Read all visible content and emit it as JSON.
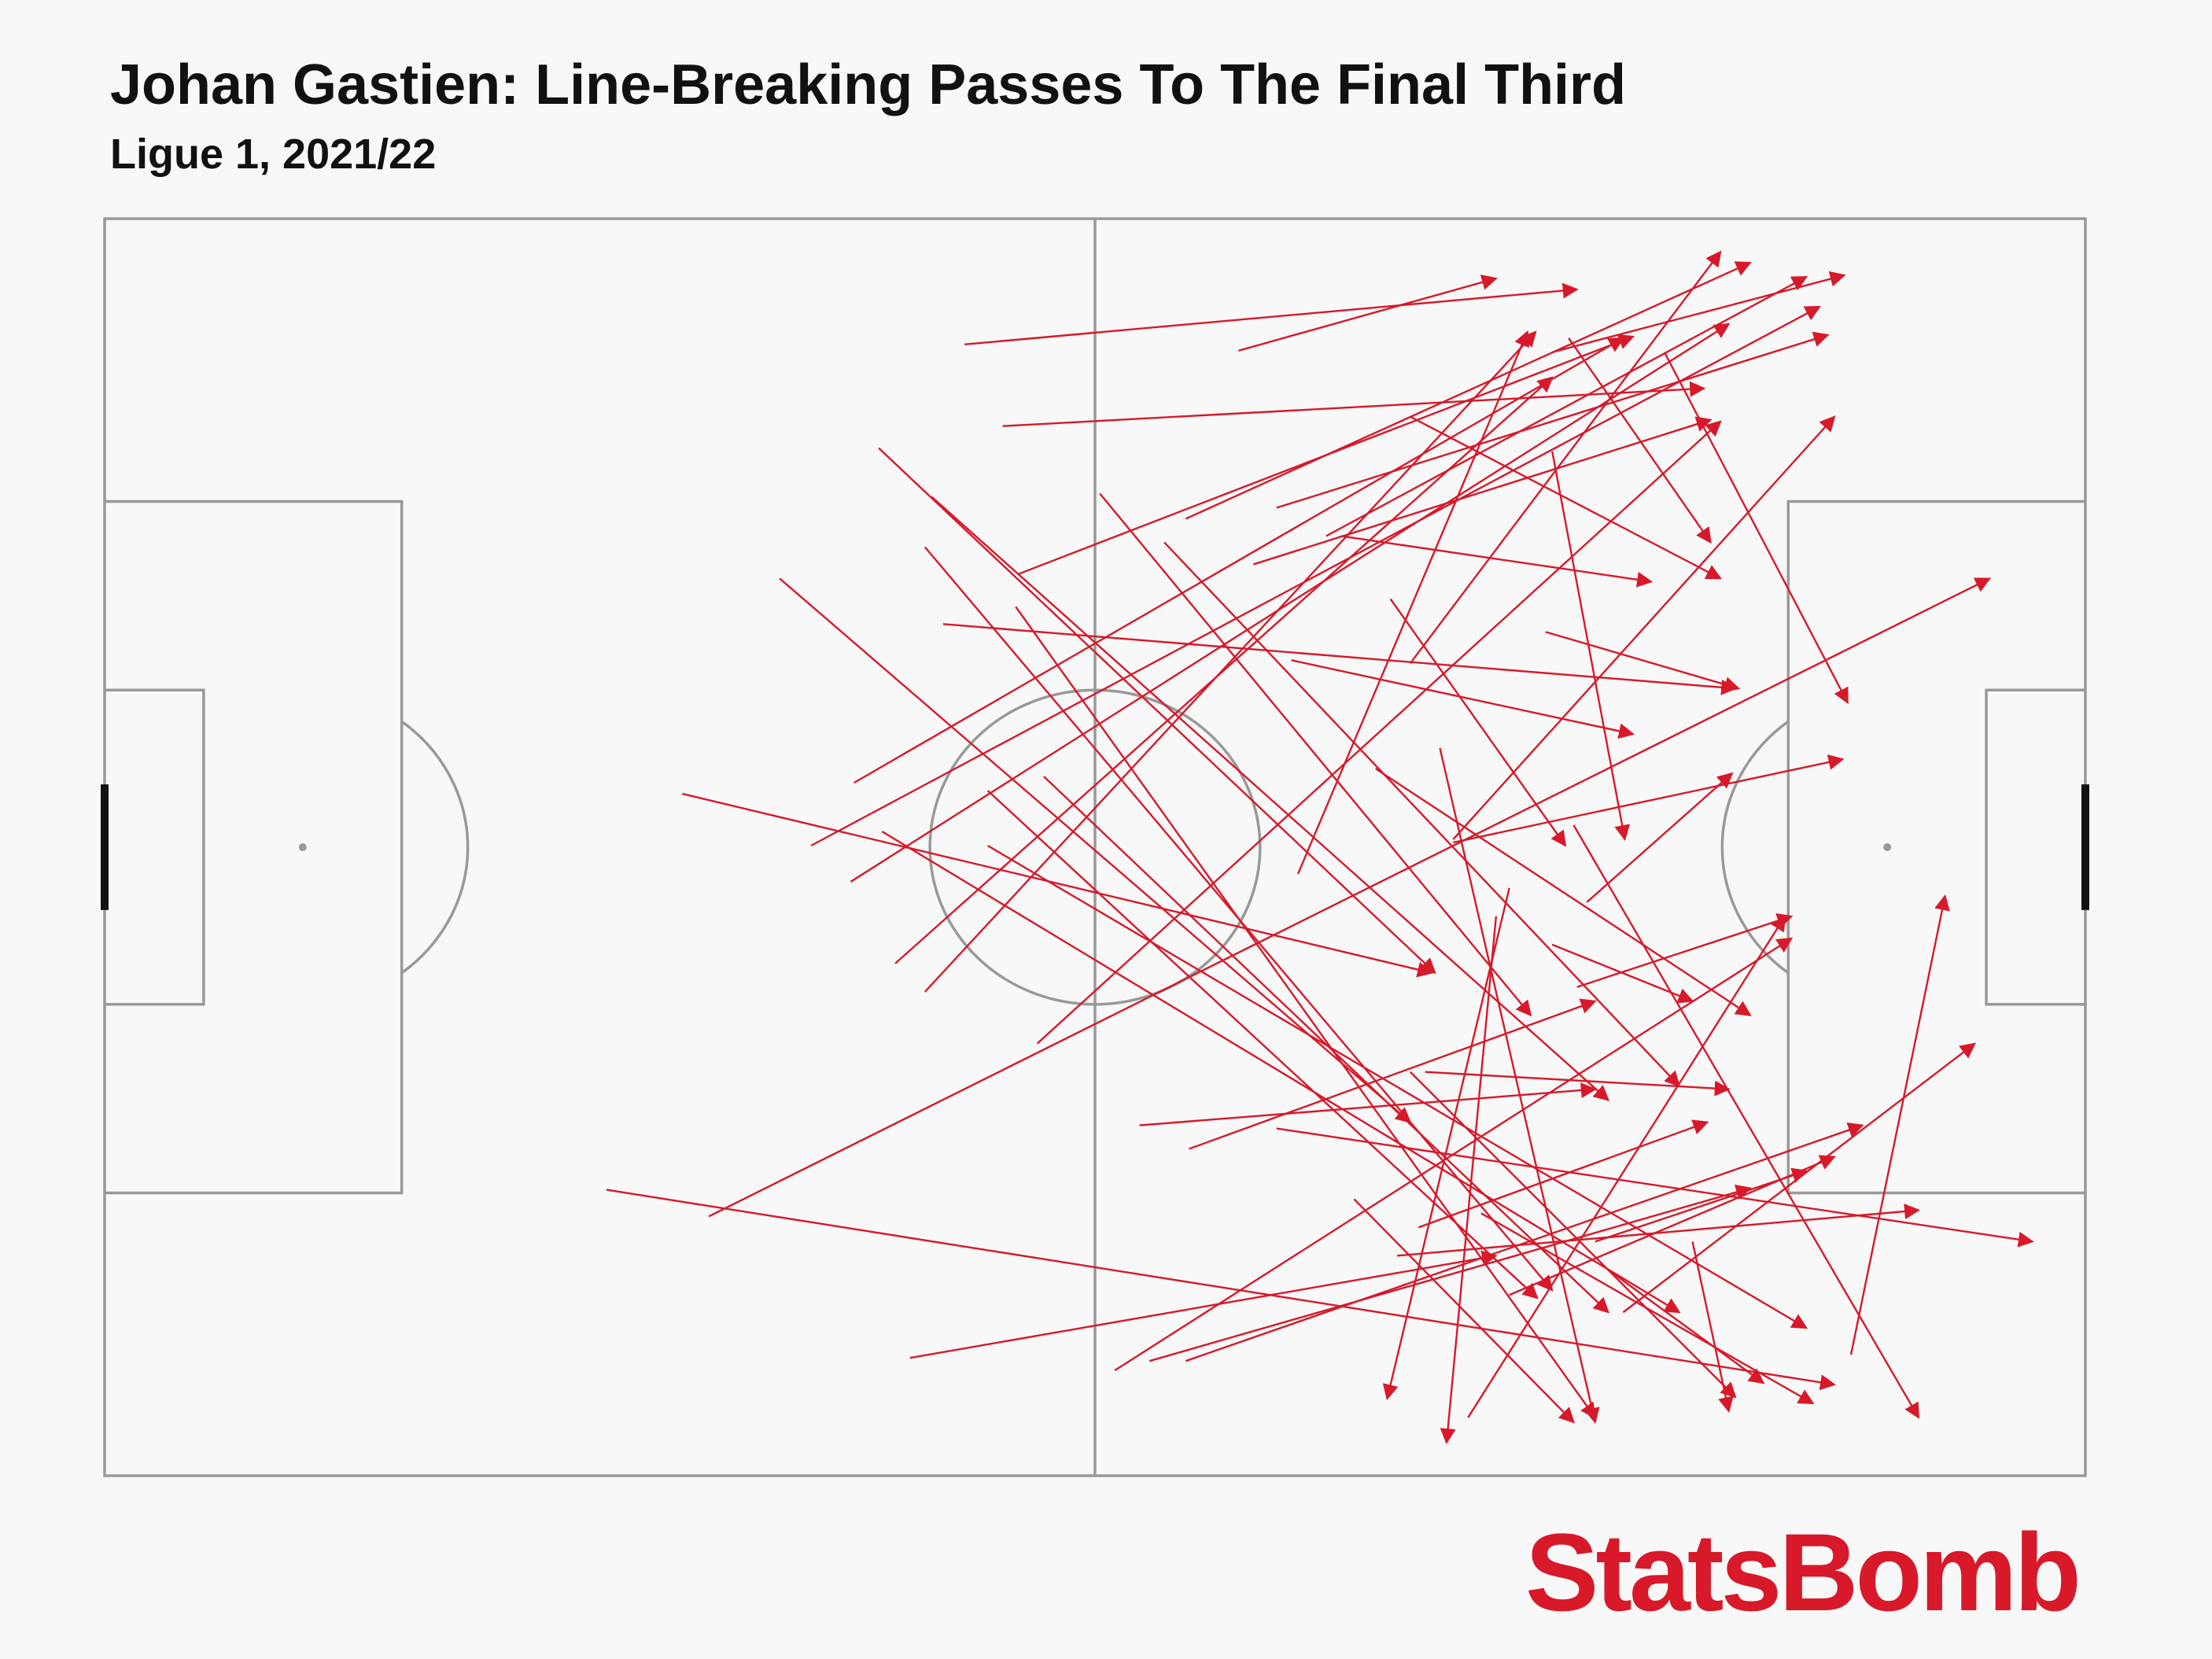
{
  "chart_data": {
    "type": "pass-map",
    "title": "Johan Gastien: Line-Breaking Passes To The Final Third",
    "subtitle": "Ligue 1, 2021/22",
    "brand": "StatsBomb",
    "color": "#d7192a",
    "xlim": [
      0,
      120
    ],
    "ylim": [
      0,
      80
    ],
    "passes": {
      "x": [
        52.1,
        68.7,
        54.4,
        55.4,
        65.5,
        79.1,
        74.0,
        71.0,
        87.7,
        69.6,
        88.7,
        45.4,
        42.8,
        45.2,
        47.9,
        49.7,
        56.5,
        72.3,
        81.7,
        81.7,
        89.8,
        87.7,
        46.9,
        50.1,
        49.7,
        55.2,
        60.3,
        64.2,
        40.9,
        35.0,
        50.8,
        71.9,
        87.3,
        94.5,
        79.1,
        74.9,
        77.9,
        77.0,
        80.9,
        85.1,
        84.3,
        36.6,
        30.4,
        48.8,
        61.2,
        63.3,
        65.5,
        62.7,
        65.7,
        71.0,
        89.2,
        105.8,
        92.0,
        85.1,
        90.3,
        82.6,
        79.1,
        75.7,
        89.0,
        83.4,
        78.3,
        96.2,
        91.1,
        79.6,
        80.0,
        53.5,
        56.9,
        47.1,
        53.5,
        87.7
      ],
      "y": [
        8.0,
        8.4,
        13.2,
        22.6,
        19.1,
        28.3,
        20.2,
        18.4,
        8.5,
        22.0,
        7.6,
        35.9,
        39.9,
        42.2,
        47.4,
        49.2,
        52.5,
        41.7,
        39.5,
        39.7,
        43.5,
        14.8,
        14.6,
        17.7,
        20.9,
        24.7,
        17.5,
        20.6,
        22.9,
        36.6,
        25.8,
        28.1,
        26.3,
        8.5,
        12.6,
        20.2,
        24.2,
        35.0,
        33.7,
        42.6,
        44.4,
        63.5,
        61.8,
        72.5,
        73.3,
        72.7,
        72.7,
        57.7,
        59.2,
        57.9,
        48.9,
        72.3,
        69.6,
        68.5,
        65.1,
        76.3,
        54.3,
        62.4,
        38.6,
        63.3,
        66.0,
        65.1,
        66.9,
        64.2,
        54.3,
        36.4,
        35.5,
        39.0,
        39.9,
        46.2
      ],
      "end_x": [
        89.2,
        84.3,
        96.9,
        92.6,
        99.7,
        97.9,
        103.1,
        104.4,
        105.4,
        97.3,
        97.3,
        92.0,
        103.9,
        98.4,
        87.7,
        86.7,
        97.9,
        86.2,
        104.8,
        105.3,
        98.6,
        92.1,
        80.6,
        91.1,
        87.7,
        90.3,
        86.4,
        95.4,
        79.1,
        80.4,
        98.8,
        92.6,
        99.0,
        105.6,
        97.9,
        93.7,
        88.5,
        99.7,
        90.3,
        77.7,
        81.3,
        114.2,
        104.8,
        84.3,
        102.2,
        99.7,
        106.5,
        90.3,
        90.3,
        116.8,
        102.2,
        111.5,
        113.3,
        104.8,
        103.1,
        101.8,
        98.8,
        89.0,
        109.9,
        103.5,
        109.9,
        98.4,
        100.5,
        97.1,
        98.4,
        86.8,
        91.1,
        95.4,
        103.1,
        96.2
      ],
      "end_y": [
        4.5,
        3.8,
        10.8,
        7.5,
        2.8,
        2.1,
        3.7,
        7.4,
        3.6,
        12.8,
        20.6,
        7.6,
        5.6,
        6.7,
        10.1,
        7.2,
        12.9,
        7.2,
        12.6,
        34.4,
        35.3,
        39.5,
        48.0,
        56.1,
        68.2,
        76.3,
        50.7,
        55.2,
        57.5,
        48.0,
        29.9,
        32.8,
        29.9,
        30.8,
        22.9,
        23.1,
        39.9,
        50.7,
        76.6,
        75.1,
        77.9,
        22.9,
        74.2,
        66.0,
        45.8,
        61.7,
        57.7,
        55.4,
        49.8,
        65.1,
        44.4,
        43.1,
        52.5,
        59.7,
        60.6,
        44.4,
        75.0,
        76.6,
        76.3,
        75.4,
        63.1,
        75.9,
        74.1,
        57.5,
        55.4,
        68.7,
        69.6,
        69.6,
        70.6,
        49.8
      ]
    }
  }
}
